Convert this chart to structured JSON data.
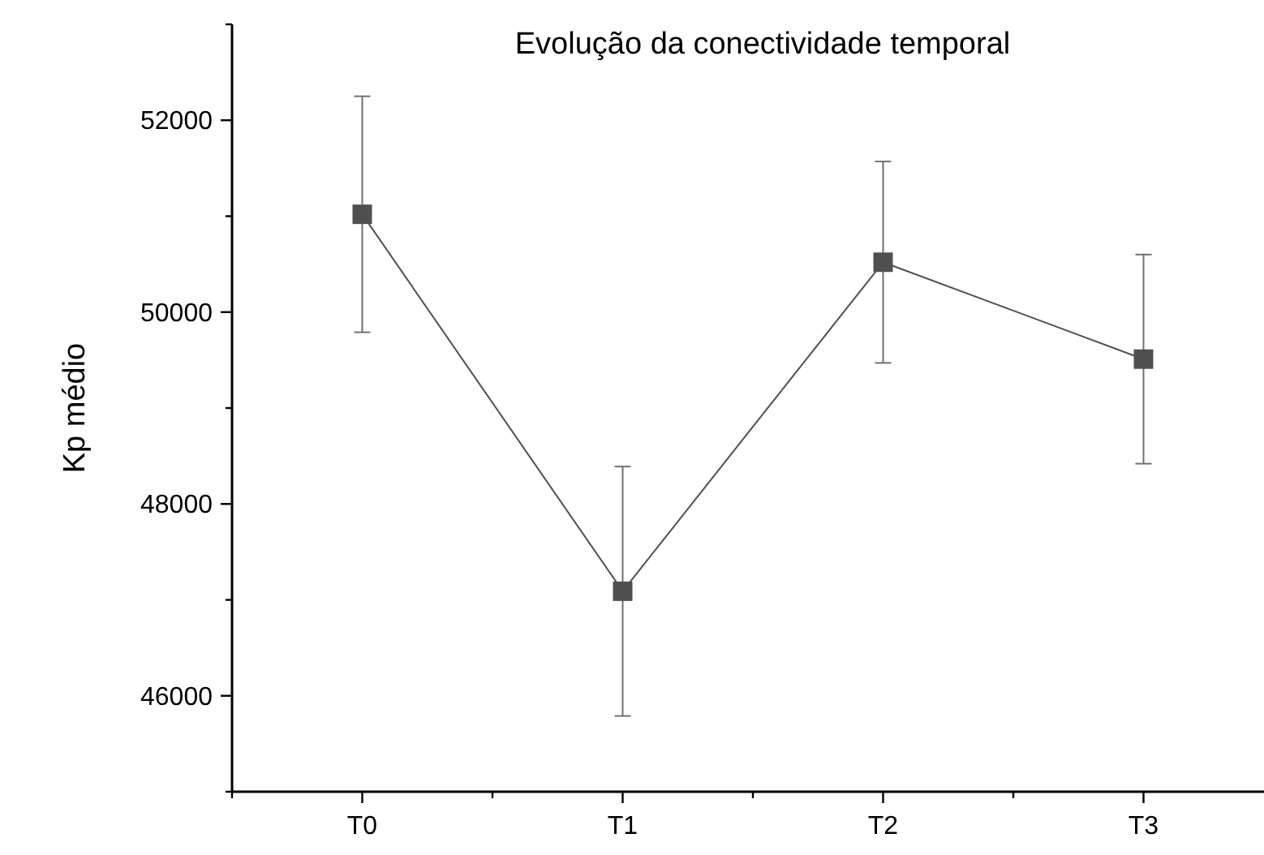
{
  "chart_data": {
    "type": "line",
    "title": "Evolução da conectividade temporal",
    "ylabel": "Kp médio",
    "categories": [
      "T0",
      "T1",
      "T2",
      "T3"
    ],
    "series": [
      {
        "color": "#505050",
        "values": [
          51020,
          47090,
          50520,
          49510
        ],
        "errors": [
          1230,
          1300,
          1050,
          1090
        ]
      }
    ],
    "ylim": [
      45000,
      53000
    ],
    "yticks": [
      {
        "value": 45000,
        "label": null
      },
      46000,
      {
        "value": 47000,
        "label": null
      },
      48000,
      {
        "value": 49000,
        "label": null
      },
      50000,
      {
        "value": 51000,
        "label": null
      },
      52000,
      {
        "value": 53000,
        "label": null
      }
    ],
    "grid": false,
    "marker": "square",
    "line_style": "solid"
  }
}
